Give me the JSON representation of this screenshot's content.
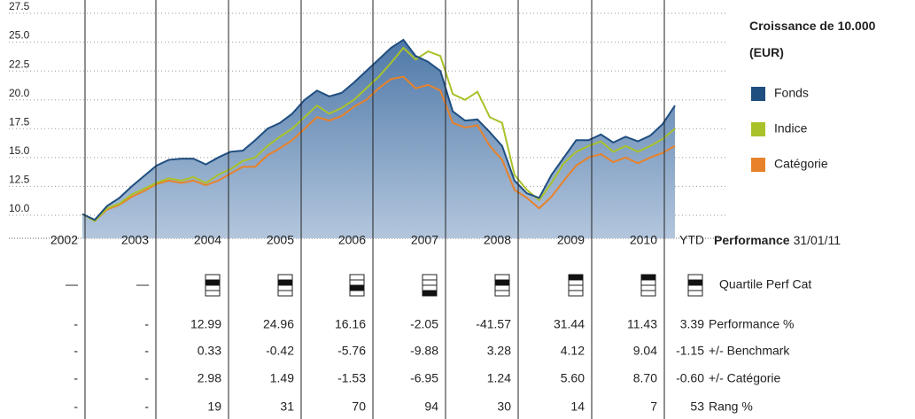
{
  "chart_data": {
    "type": "area-line",
    "title": "Croissance de 10.000 (EUR)",
    "ylim": [
      8,
      27.5
    ],
    "yticks": [
      {
        "value": 10,
        "label": "10.0"
      },
      12.5,
      {
        "value": 15,
        "label": "15.0"
      },
      17.5,
      {
        "value": 20,
        "label": "20.0"
      },
      22.5,
      {
        "value": 25,
        "label": "25.0"
      },
      27.5
    ],
    "grid": true,
    "series": [
      {
        "name": "Fonds",
        "color": "#1f4e80",
        "values": [
          10.1,
          9.6,
          10.8,
          11.5,
          12.5,
          13.4,
          14.3,
          14.8,
          14.9,
          14.9,
          14.4,
          15.0,
          15.5,
          15.6,
          16.5,
          17.5,
          18.0,
          18.8,
          20.0,
          20.8,
          20.3,
          20.6,
          21.5,
          22.5,
          23.5,
          24.5,
          25.2,
          23.8,
          23.3,
          22.5,
          19.0,
          18.2,
          18.3,
          17.2,
          16.0,
          13.0,
          11.9,
          11.5,
          13.5,
          15.0,
          16.5,
          16.5,
          17.0,
          16.3,
          16.8,
          16.4,
          16.9,
          17.9,
          19.5
        ]
      },
      {
        "name": "Indice",
        "color": "#a9c22a",
        "values": [
          10.1,
          9.5,
          10.6,
          11.0,
          11.8,
          12.3,
          12.8,
          13.2,
          13.0,
          13.3,
          12.8,
          13.5,
          14.0,
          14.7,
          15.0,
          16.0,
          16.8,
          17.5,
          18.5,
          19.5,
          18.8,
          19.3,
          20.0,
          21.0,
          22.0,
          23.2,
          24.5,
          23.5,
          24.2,
          23.8,
          20.5,
          20.0,
          20.7,
          18.5,
          18.0,
          13.5,
          12.2,
          11.3,
          12.8,
          14.5,
          15.5,
          16.0,
          16.4,
          15.5,
          16.0,
          15.5,
          16.0,
          16.6,
          17.5
        ]
      },
      {
        "name": "Catégorie",
        "color": "#e8822a",
        "values": [
          10.1,
          9.5,
          10.5,
          10.9,
          11.6,
          12.1,
          12.7,
          13.0,
          12.8,
          13.0,
          12.6,
          13.0,
          13.6,
          14.2,
          14.2,
          15.2,
          15.8,
          16.5,
          17.5,
          18.5,
          18.2,
          18.6,
          19.4,
          20.0,
          21.0,
          21.8,
          22.0,
          21.0,
          21.3,
          20.8,
          18.0,
          17.6,
          17.8,
          16.0,
          14.8,
          12.2,
          11.5,
          10.6,
          11.6,
          13.0,
          14.3,
          15.0,
          15.3,
          14.6,
          15.0,
          14.5,
          15.0,
          15.4,
          16.0
        ]
      }
    ]
  },
  "table": {
    "columns": [
      "2002",
      "2003",
      "2004",
      "2005",
      "2006",
      "2007",
      "2008",
      "2009",
      "2010",
      "YTD"
    ],
    "header_label": "Performance",
    "header_date": "31/01/11",
    "quartile_row": {
      "label": "Quartile Perf Cat",
      "cells": [
        "—",
        "—",
        2,
        2,
        3,
        4,
        2,
        1,
        1,
        2
      ]
    },
    "rows": [
      {
        "label": "Performance %",
        "cells": [
          "-",
          "-",
          "12.99",
          "24.96",
          "16.16",
          "-2.05",
          "-41.57",
          "31.44",
          "11.43",
          "3.39"
        ]
      },
      {
        "label": "+/- Benchmark",
        "cells": [
          "-",
          "-",
          "0.33",
          "-0.42",
          "-5.76",
          "-9.88",
          "3.28",
          "4.12",
          "9.04",
          "-1.15"
        ]
      },
      {
        "label": "+/- Catégorie",
        "cells": [
          "-",
          "-",
          "2.98",
          "1.49",
          "-1.53",
          "-6.95",
          "1.24",
          "5.60",
          "8.70",
          "-0.60"
        ]
      },
      {
        "label": "Rang %",
        "cells": [
          "-",
          "-",
          "19",
          "31",
          "70",
          "94",
          "30",
          "14",
          "7",
          "53"
        ]
      }
    ]
  }
}
